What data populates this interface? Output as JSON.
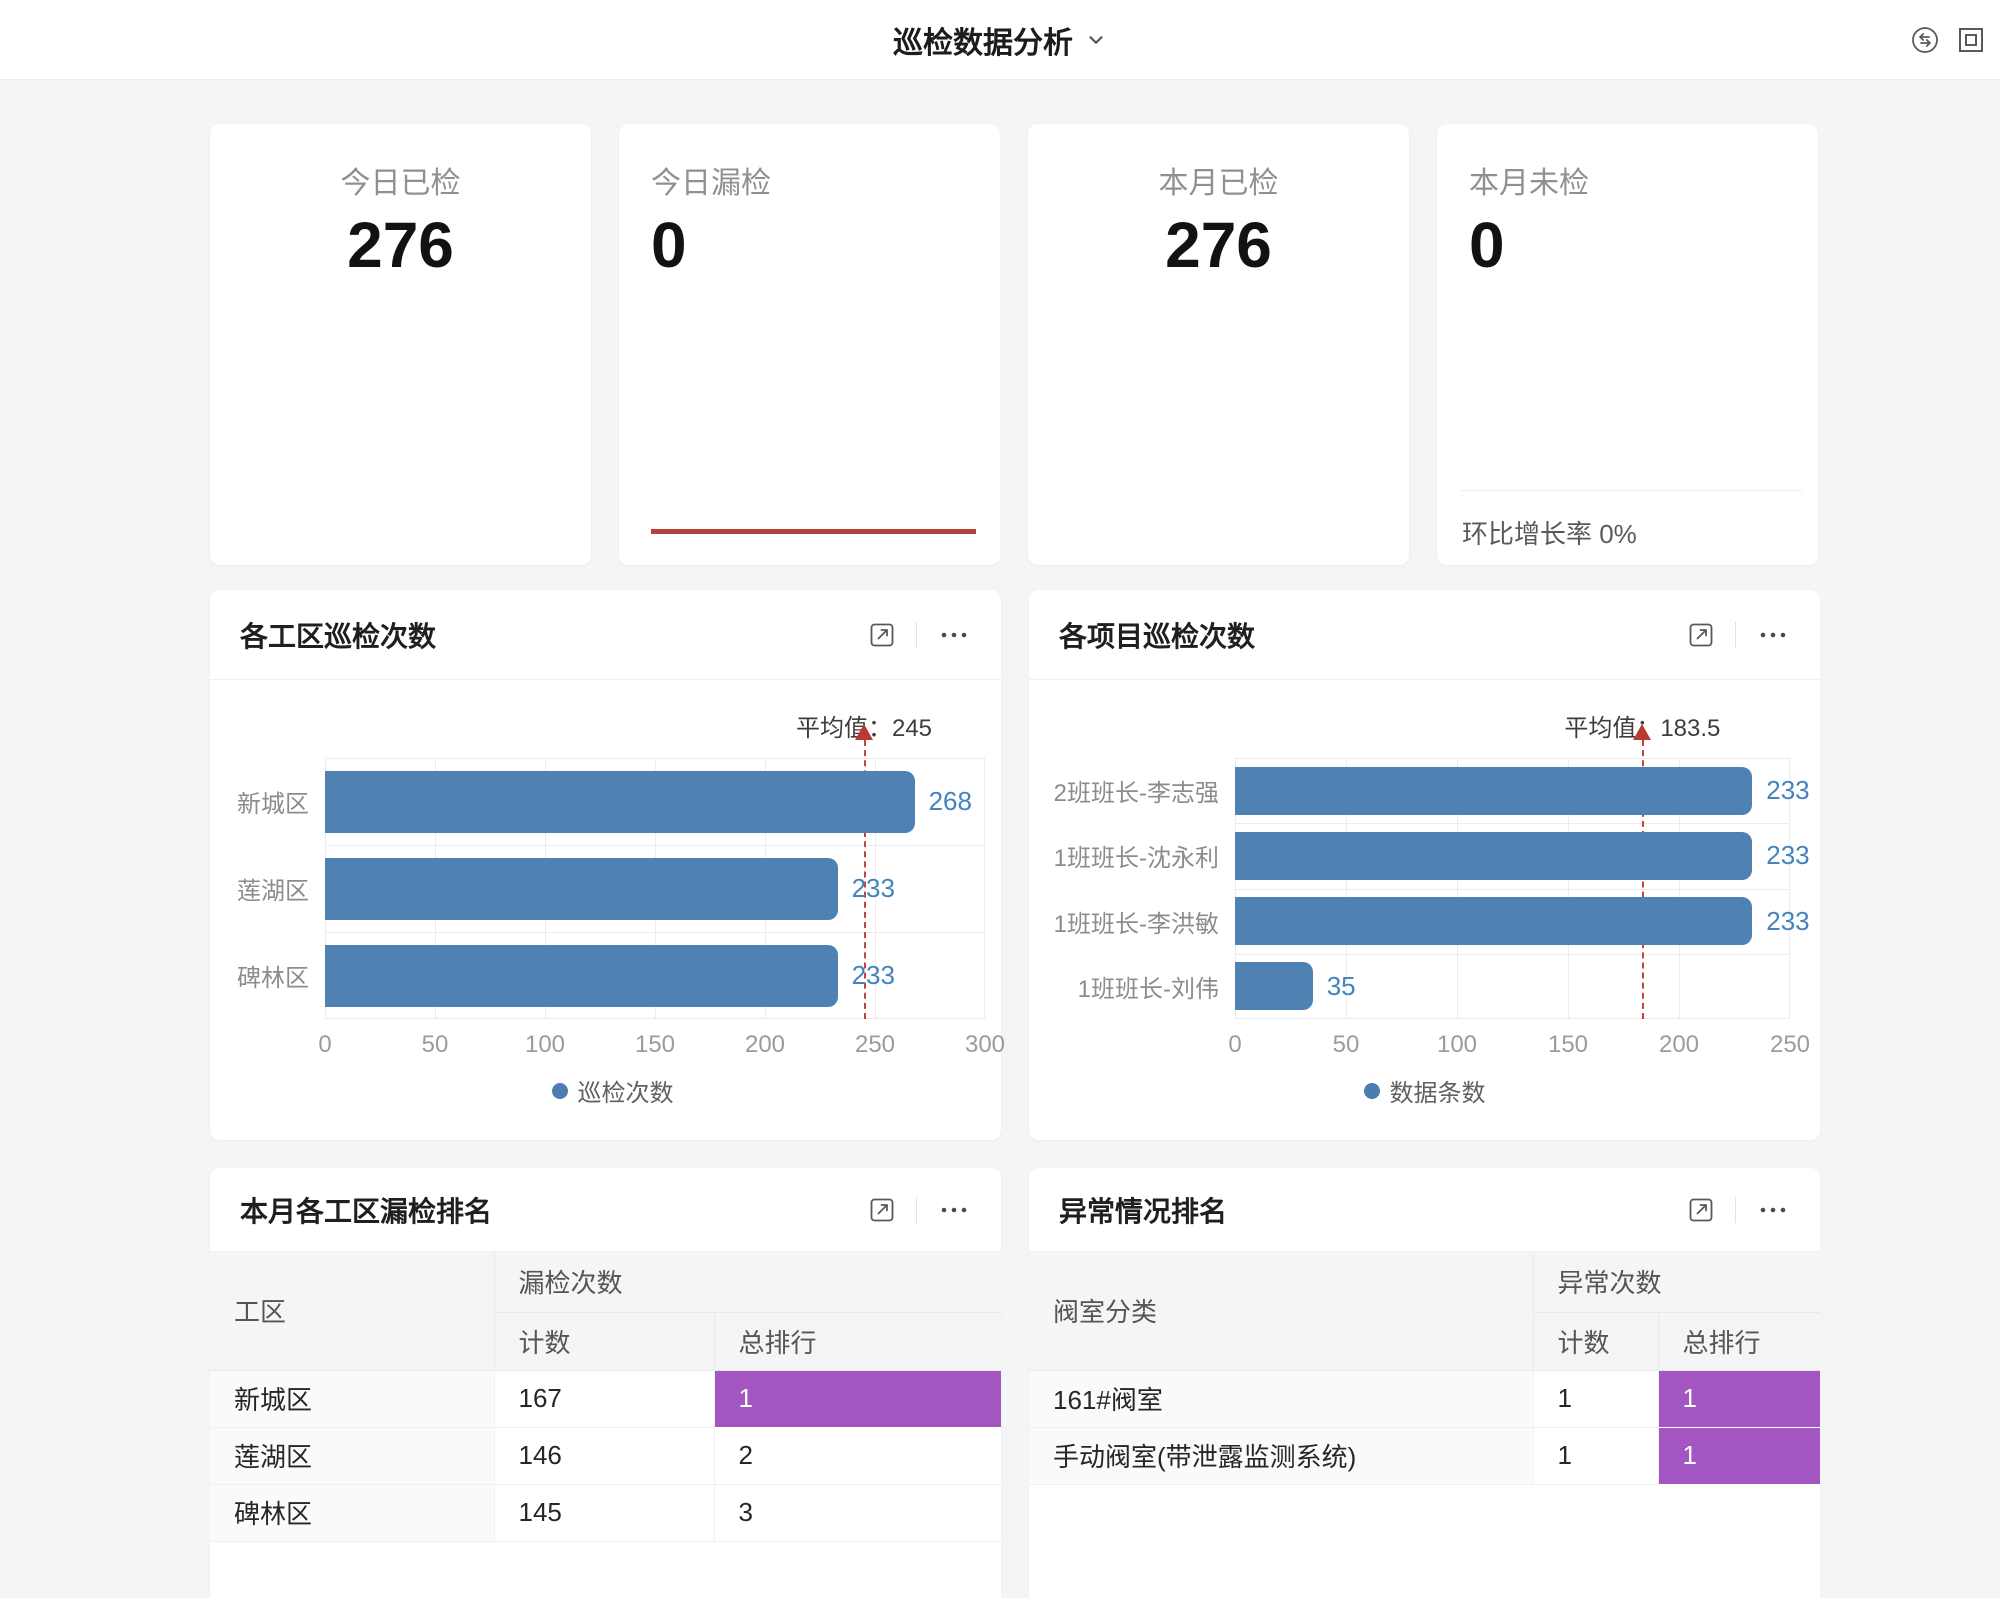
{
  "header": {
    "title": "巡检数据分析",
    "icons": {
      "dropdown": "chevron-down-icon",
      "refresh": "refresh-icon",
      "window": "window-frame-icon"
    }
  },
  "stats": [
    {
      "label": "今日已检",
      "value": "276"
    },
    {
      "label": "今日漏检",
      "value": "0"
    },
    {
      "label": "本月已检",
      "value": "276"
    },
    {
      "label": "本月未检",
      "value": "0",
      "footer": "环比增长率 0%"
    }
  ],
  "colors": {
    "bar_blue": "#4f81b2",
    "value_blue": "#4483bd",
    "mean_line_red": "#c2453b",
    "alert_red": "#b5433b",
    "rank_purple": "#a355c1",
    "page_bg": "#f4f5f7"
  },
  "chart_data": [
    {
      "type": "bar",
      "orientation": "horizontal",
      "title": "各工区巡检次数",
      "categories": [
        "新城区",
        "莲湖区",
        "碑林区"
      ],
      "values": [
        268,
        233,
        233
      ],
      "series_name": "巡检次数",
      "mean": 245,
      "mean_label": "平均值：245",
      "xlim": [
        0,
        300
      ],
      "xticks": [
        0,
        50,
        100,
        150,
        200,
        250,
        300
      ],
      "grid": true,
      "legend_position": "bottom"
    },
    {
      "type": "bar",
      "orientation": "horizontal",
      "title": "各项目巡检次数",
      "categories": [
        "2班班长-李志强",
        "1班班长-沈永利",
        "1班班长-李洪敏",
        "1班班长-刘伟"
      ],
      "values": [
        233,
        233,
        233,
        35
      ],
      "series_name": "数据条数",
      "mean": 183.5,
      "mean_label": "平均值：183.5",
      "xlim": [
        0,
        250
      ],
      "xticks": [
        0,
        50,
        100,
        150,
        200,
        250
      ],
      "grid": true,
      "legend_position": "bottom"
    }
  ],
  "tables": [
    {
      "title": "本月各工区漏检排名",
      "col1_header": "工区",
      "group_header": "漏检次数",
      "sub_headers": [
        "计数",
        "总排行"
      ],
      "rows": [
        {
          "name": "新城区",
          "count": "167",
          "rank": "1",
          "highlight": true
        },
        {
          "name": "莲湖区",
          "count": "146",
          "rank": "2",
          "highlight": false
        },
        {
          "name": "碑林区",
          "count": "145",
          "rank": "3",
          "highlight": false
        }
      ]
    },
    {
      "title": "异常情况排名",
      "col1_header": "阀室分类",
      "group_header": "异常次数",
      "sub_headers": [
        "计数",
        "总排行"
      ],
      "rows": [
        {
          "name": "161#阀室",
          "count": "1",
          "rank": "1",
          "highlight": true
        },
        {
          "name": "手动阀室(带泄露监测系统)",
          "count": "1",
          "rank": "1",
          "highlight": true
        }
      ]
    }
  ]
}
